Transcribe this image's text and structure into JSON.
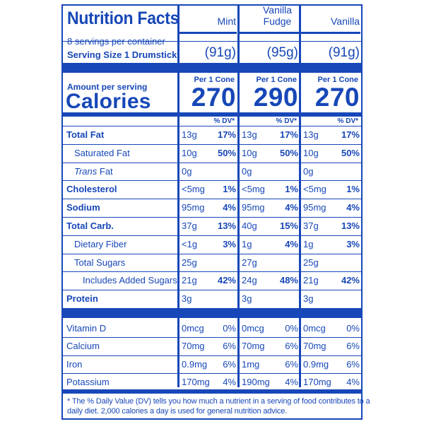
{
  "colors": {
    "ink": "#1747b8",
    "background": "#ffffff"
  },
  "title": "Nutrition Facts",
  "servings": "8 servings per container",
  "serving_size_label": "Serving Size 1 Drumstick",
  "amount_per_serving": "Amount per serving",
  "calories_label": "Calories",
  "dv_header": "% DV*",
  "flavors": [
    {
      "name": "Mint",
      "serving": "(91g)",
      "per": "Per 1 Cone",
      "calories": "270"
    },
    {
      "name": "Vanilla Fudge",
      "serving": "(95g)",
      "per": "Per 1 Cone",
      "calories": "290"
    },
    {
      "name": "Vanilla",
      "serving": "(91g)",
      "per": "Per 1 Cone",
      "calories": "270"
    }
  ],
  "rows": [
    {
      "label": "Total Fat",
      "style": "bold",
      "values": [
        [
          "13g",
          "17%"
        ],
        [
          "13g",
          "17%"
        ],
        [
          "13g",
          "17%"
        ]
      ]
    },
    {
      "label": "Saturated Fat",
      "style": "indent",
      "values": [
        [
          "10g",
          "50%"
        ],
        [
          "10g",
          "50%"
        ],
        [
          "10g",
          "50%"
        ]
      ]
    },
    {
      "label": "Trans Fat",
      "style": "trans",
      "values": [
        [
          "0g",
          ""
        ],
        [
          "0g",
          ""
        ],
        [
          "0g",
          ""
        ]
      ]
    },
    {
      "label": "Cholesterol",
      "style": "bold",
      "values": [
        [
          "<5mg",
          "1%"
        ],
        [
          "<5mg",
          "1%"
        ],
        [
          "<5mg",
          "1%"
        ]
      ]
    },
    {
      "label": "Sodium",
      "style": "bold",
      "values": [
        [
          "95mg",
          "4%"
        ],
        [
          "95mg",
          "4%"
        ],
        [
          "95mg",
          "4%"
        ]
      ]
    },
    {
      "label": "Total Carb.",
      "style": "bold",
      "values": [
        [
          "37g",
          "13%"
        ],
        [
          "40g",
          "15%"
        ],
        [
          "37g",
          "13%"
        ]
      ]
    },
    {
      "label": "Dietary Fiber",
      "style": "indent",
      "values": [
        [
          "<1g",
          "3%"
        ],
        [
          "1g",
          "4%"
        ],
        [
          "1g",
          "3%"
        ]
      ]
    },
    {
      "label": "Total Sugars",
      "style": "indent",
      "values": [
        [
          "25g",
          ""
        ],
        [
          "27g",
          ""
        ],
        [
          "25g",
          ""
        ]
      ]
    },
    {
      "label": "Includes Added Sugars",
      "style": "indent2",
      "values": [
        [
          "21g",
          "42%"
        ],
        [
          "24g",
          "48%"
        ],
        [
          "21g",
          "42%"
        ]
      ]
    },
    {
      "label": "Protein",
      "style": "bold",
      "values": [
        [
          "3g",
          ""
        ],
        [
          "3g",
          ""
        ],
        [
          "3g",
          ""
        ]
      ]
    }
  ],
  "trans_prefix": "Trans",
  "trans_suffix": " Fat",
  "vitamins": [
    {
      "label": "Vitamin D",
      "values": [
        [
          "0mcg",
          "0%"
        ],
        [
          "0mcg",
          "0%"
        ],
        [
          "0mcg",
          "0%"
        ]
      ]
    },
    {
      "label": "Calcium",
      "values": [
        [
          "70mg",
          "6%"
        ],
        [
          "70mg",
          "6%"
        ],
        [
          "70mg",
          "6%"
        ]
      ]
    },
    {
      "label": "Iron",
      "values": [
        [
          "0.9mg",
          "6%"
        ],
        [
          "1mg",
          "6%"
        ],
        [
          "0.9mg",
          "6%"
        ]
      ]
    },
    {
      "label": "Potassium",
      "values": [
        [
          "170mg",
          "4%"
        ],
        [
          "190mg",
          "4%"
        ],
        [
          "170mg",
          "4%"
        ]
      ]
    }
  ],
  "footnote_line1": "* The % Daily Value (DV) tells you how much a nutrient in a serving of food contributes to a",
  "footnote_line2": "daily diet. 2,000 calories a day is used for general nutrition advice."
}
